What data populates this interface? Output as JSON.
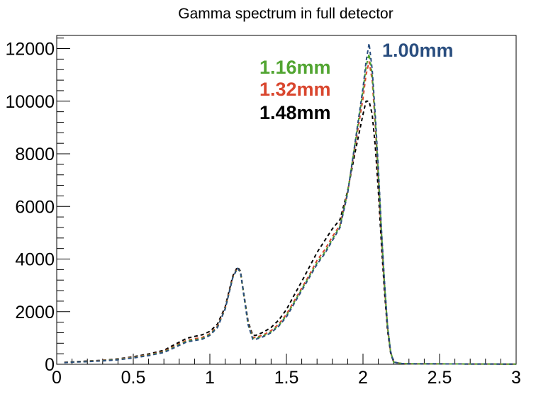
{
  "chart_data": {
    "type": "line",
    "title": "Gamma spectrum in full detector",
    "xlabel": "",
    "ylabel": "",
    "xlim": [
      0,
      3
    ],
    "ylim": [
      0,
      12500
    ],
    "x_tick_labels": [
      "0",
      "0.5",
      "1",
      "1.5",
      "2",
      "2.5",
      "3"
    ],
    "x_ticks": [
      0,
      0.5,
      1,
      1.5,
      2,
      2.5,
      3
    ],
    "y_tick_labels": [
      "0",
      "2000",
      "4000",
      "6000",
      "8000",
      "10000",
      "12000"
    ],
    "y_ticks": [
      0,
      2000,
      4000,
      6000,
      8000,
      10000,
      12000
    ],
    "grid": false,
    "legend_placement": "top-center",
    "line_style": "dashed",
    "x": [
      0.05,
      0.1,
      0.2,
      0.3,
      0.4,
      0.5,
      0.6,
      0.7,
      0.75,
      0.8,
      0.85,
      0.9,
      0.95,
      1.0,
      1.05,
      1.1,
      1.15,
      1.18,
      1.2,
      1.22,
      1.25,
      1.28,
      1.3,
      1.35,
      1.4,
      1.45,
      1.5,
      1.55,
      1.6,
      1.65,
      1.7,
      1.75,
      1.8,
      1.85,
      1.9,
      1.95,
      2.0,
      2.02,
      2.04,
      2.06,
      2.08,
      2.1,
      2.12,
      2.14,
      2.16,
      2.18,
      2.2,
      2.25,
      2.3,
      2.5,
      2.7,
      2.9,
      3.0
    ],
    "series": [
      {
        "name": "1.00mm",
        "color": "#2a4e7f",
        "values": [
          60,
          80,
          100,
          130,
          170,
          240,
          330,
          450,
          580,
          720,
          850,
          900,
          950,
          1100,
          1400,
          2100,
          3300,
          3650,
          3500,
          2700,
          1500,
          950,
          950,
          1050,
          1200,
          1450,
          1800,
          2300,
          2800,
          3300,
          3800,
          4200,
          4700,
          5200,
          6500,
          8500,
          10500,
          11500,
          12200,
          11200,
          9500,
          7500,
          5200,
          3200,
          1500,
          500,
          80,
          30,
          20,
          15,
          10,
          8,
          5
        ]
      },
      {
        "name": "1.16mm",
        "color": "#52a532",
        "values": [
          65,
          85,
          105,
          135,
          180,
          250,
          345,
          470,
          600,
          750,
          880,
          930,
          980,
          1130,
          1420,
          2100,
          3300,
          3650,
          3500,
          2700,
          1520,
          980,
          980,
          1080,
          1230,
          1480,
          1850,
          2350,
          2850,
          3350,
          3850,
          4250,
          4750,
          5250,
          6550,
          8450,
          10400,
          11300,
          11800,
          11000,
          9300,
          7300,
          5100,
          3100,
          1450,
          480,
          80,
          30,
          20,
          15,
          10,
          8,
          5
        ]
      },
      {
        "name": "1.32mm",
        "color": "#d9462e",
        "values": [
          70,
          90,
          110,
          140,
          190,
          265,
          360,
          490,
          630,
          780,
          910,
          970,
          1020,
          1160,
          1450,
          2120,
          3320,
          3660,
          3500,
          2700,
          1550,
          1020,
          1020,
          1120,
          1280,
          1530,
          1900,
          2400,
          2900,
          3400,
          3950,
          4350,
          4850,
          5300,
          6550,
          8350,
          10100,
          11000,
          11500,
          10800,
          9100,
          7100,
          4950,
          3000,
          1400,
          470,
          80,
          30,
          20,
          15,
          10,
          8,
          5
        ]
      },
      {
        "name": "1.48mm",
        "color": "#000000",
        "values": [
          75,
          95,
          120,
          150,
          205,
          285,
          390,
          530,
          690,
          840,
          990,
          1060,
          1120,
          1250,
          1530,
          2180,
          3360,
          3700,
          3540,
          2750,
          1620,
          1100,
          1100,
          1220,
          1400,
          1680,
          2080,
          2620,
          3150,
          3700,
          4250,
          4700,
          5150,
          5500,
          6600,
          8100,
          9500,
          10000,
          10000,
          9500,
          8300,
          6600,
          4600,
          2800,
          1300,
          440,
          80,
          30,
          20,
          15,
          10,
          8,
          5
        ]
      }
    ]
  }
}
